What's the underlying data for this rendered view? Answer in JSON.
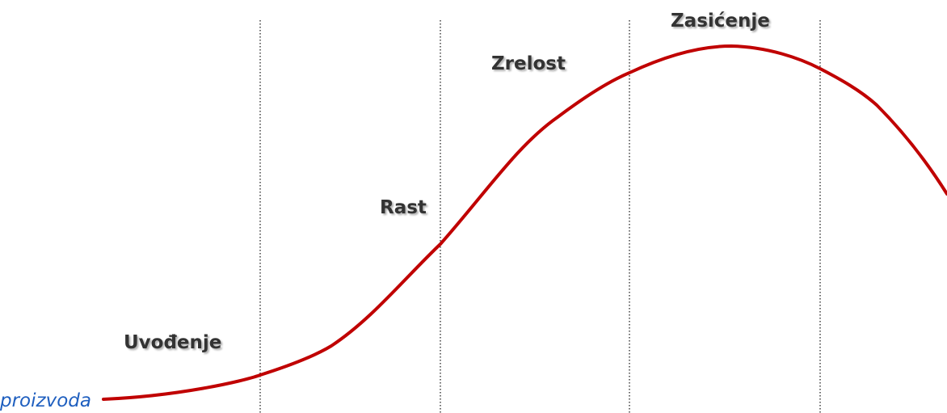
{
  "stages": [
    "Uvođenje",
    "Rast",
    "Zrelost",
    "Zasićenje"
  ],
  "axis_label": "proizvoda"
}
